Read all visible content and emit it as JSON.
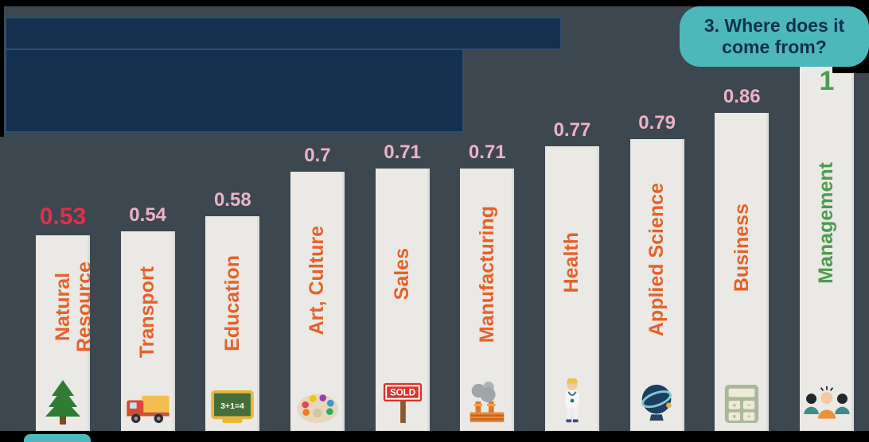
{
  "question_bubble": {
    "line1": "3. Where does it",
    "line2": "come from?"
  },
  "chart_data": {
    "type": "bar",
    "title": "",
    "xlabel": "",
    "ylabel": "",
    "ylim": [
      0,
      1
    ],
    "legend": false,
    "grid": false,
    "categories": [
      "Natural Resource",
      "Transport",
      "Education",
      "Art, Culture",
      "Sales",
      "Manufacturing",
      "Health",
      "Applied Science",
      "Business",
      "Management"
    ],
    "values": [
      0.53,
      0.54,
      0.58,
      0.7,
      0.71,
      0.71,
      0.77,
      0.79,
      0.86,
      1
    ],
    "bar_color": "#eae9e5",
    "label_color": "#e4622a",
    "value_color": "#edb2c6",
    "bars": [
      {
        "label": "Natural Resource",
        "value": 0.53,
        "display": "0.53",
        "icon": "tree-icon",
        "value_color": "#e0304a",
        "value_size": 30
      },
      {
        "label": "Transport",
        "value": 0.54,
        "display": "0.54",
        "icon": "truck-icon"
      },
      {
        "label": "Education",
        "value": 0.58,
        "display": "0.58",
        "icon": "chalkboard-icon"
      },
      {
        "label": "Art, Culture",
        "value": 0.7,
        "display": "0.7",
        "icon": "palette-icon"
      },
      {
        "label": "Sales",
        "value": 0.71,
        "display": "0.71",
        "icon": "sold-sign-icon"
      },
      {
        "label": "Manufacturing",
        "value": 0.71,
        "display": "0.71",
        "icon": "factory-icon"
      },
      {
        "label": "Health",
        "value": 0.77,
        "display": "0.77",
        "icon": "doctor-icon"
      },
      {
        "label": "Applied Science",
        "value": 0.79,
        "display": "0.79",
        "icon": "armillary-globe-icon"
      },
      {
        "label": "Business",
        "value": 0.86,
        "display": "0.86",
        "icon": "calculator-icon"
      },
      {
        "label": "Management",
        "value": 1,
        "display": "1",
        "icon": "team-icon",
        "value_color": "#4d9b50",
        "label_color": "#4d9b50",
        "value_size": 34,
        "value_on_bar": true
      }
    ]
  },
  "colors": {
    "background": "#3d4750",
    "bubble": "#4cb8bb",
    "bubble_text": "#12314f",
    "masked_box_fill": "#14304e",
    "masked_box_border": "#2a5076",
    "highlight_red": "#e0304a",
    "highlight_green": "#4d9b50"
  }
}
